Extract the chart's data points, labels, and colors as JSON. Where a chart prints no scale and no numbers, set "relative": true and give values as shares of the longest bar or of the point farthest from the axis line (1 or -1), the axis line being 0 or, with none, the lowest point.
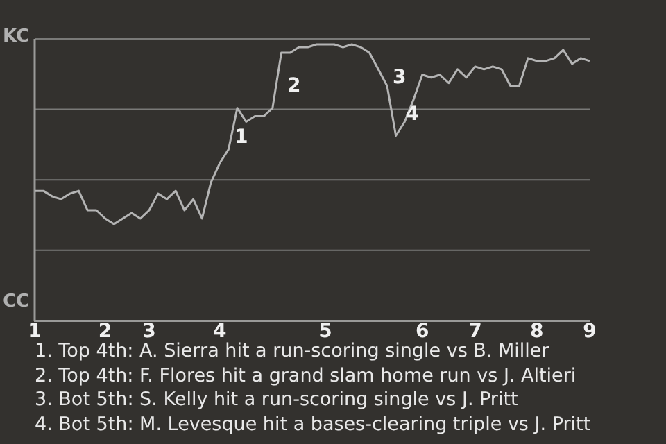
{
  "chart_data": {
    "type": "line",
    "relative": true,
    "categories": [
      "1",
      null,
      null,
      null,
      null,
      null,
      null,
      null,
      "2",
      null,
      null,
      null,
      null,
      "3",
      null,
      null,
      null,
      null,
      null,
      null,
      null,
      "4",
      null,
      null,
      null,
      null,
      null,
      null,
      null,
      null,
      null,
      null,
      null,
      "5",
      null,
      null,
      null,
      null,
      null,
      null,
      null,
      null,
      null,
      null,
      "6",
      null,
      null,
      null,
      null,
      null,
      "7",
      null,
      null,
      null,
      null,
      null,
      null,
      "8",
      null,
      null,
      null,
      null,
      null,
      "9"
    ],
    "series": [
      {
        "color": "#b4b4b4",
        "values": [
          0.47,
          0.47,
          0.45,
          0.44,
          0.46,
          0.47,
          0.4,
          0.4,
          0.37,
          0.35,
          0.37,
          0.39,
          0.37,
          0.4,
          0.46,
          0.44,
          0.47,
          0.4,
          0.44,
          0.37,
          0.5,
          0.57,
          0.62,
          0.77,
          0.72,
          0.74,
          0.74,
          0.77,
          0.97,
          0.97,
          0.99,
          0.99,
          1,
          1,
          1,
          0.99,
          1,
          0.99,
          0.97,
          0.91,
          0.85,
          0.67,
          0.72,
          0.8,
          0.89,
          0.88,
          0.89,
          0.86,
          0.91,
          0.88,
          0.92,
          0.91,
          0.92,
          0.91,
          0.85,
          0.85,
          0.95,
          0.94,
          0.94,
          0.95,
          0.98,
          0.93,
          0.95,
          0.94
        ],
        "name": null
      }
    ],
    "grid": "y",
    "marker": "none",
    "annotations": [
      "KC",
      "CC",
      "1",
      "2",
      "3",
      "4",
      "1. Top 4th: A. Sierra hit a run-scoring single vs B. Miller",
      "2. Top 4th: F. Flores hit a grand slam home run vs J. Altieri",
      "3. Bot 5th: S. Kelly hit a run-scoring single vs J. Pritt",
      "4. Bot 5th: M. Levesque hit a bases-clearing triple vs J. Pritt"
    ]
  }
}
